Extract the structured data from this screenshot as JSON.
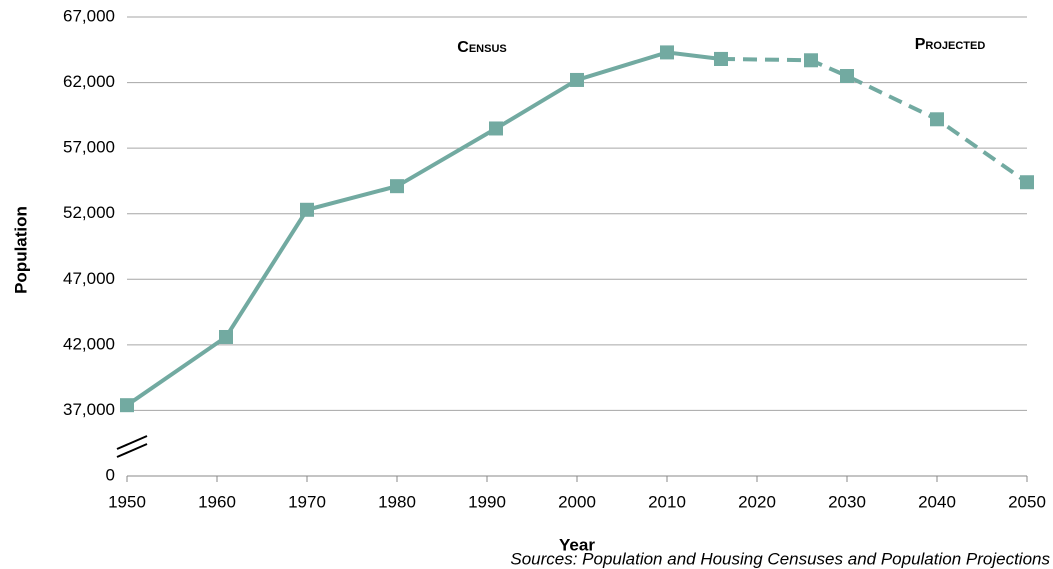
{
  "chart_data": {
    "type": "line",
    "y_label": "Population",
    "x_label": "Year",
    "source": "Sources: Population and Housing Censuses and Population Projections",
    "xlim": [
      1950,
      2050
    ],
    "xticks": [
      1950,
      1960,
      1970,
      1980,
      1990,
      2000,
      2010,
      2020,
      2030,
      2040,
      2050
    ],
    "ylim": [
      0,
      67000
    ],
    "yticks": [
      0,
      {
        "value": 37000,
        "label": "37,000"
      },
      {
        "value": 42000,
        "label": "42,000"
      },
      {
        "value": 47000,
        "label": "47,000"
      },
      {
        "value": 52000,
        "label": "52,000"
      },
      {
        "value": 57000,
        "label": "57,000"
      },
      {
        "value": 62000,
        "label": "62,000"
      },
      {
        "value": 67000,
        "label": "67,000"
      }
    ],
    "y_break": [
      0,
      37000
    ],
    "grid": true,
    "series": [
      {
        "name": "Census",
        "color": "#72aaa1",
        "style": "solid",
        "x": [
          1950,
          1961,
          1970,
          1980,
          1991,
          2000,
          2010,
          2016
        ],
        "values": [
          37400,
          42600,
          52300,
          54100,
          58500,
          62200,
          64300,
          63800
        ]
      },
      {
        "name": "Projected",
        "color": "#72aaa1",
        "style": "dashed",
        "x": [
          2016,
          2026,
          2030,
          2040,
          2050
        ],
        "values": [
          63800,
          63700,
          62500,
          59200,
          54400
        ]
      }
    ]
  }
}
